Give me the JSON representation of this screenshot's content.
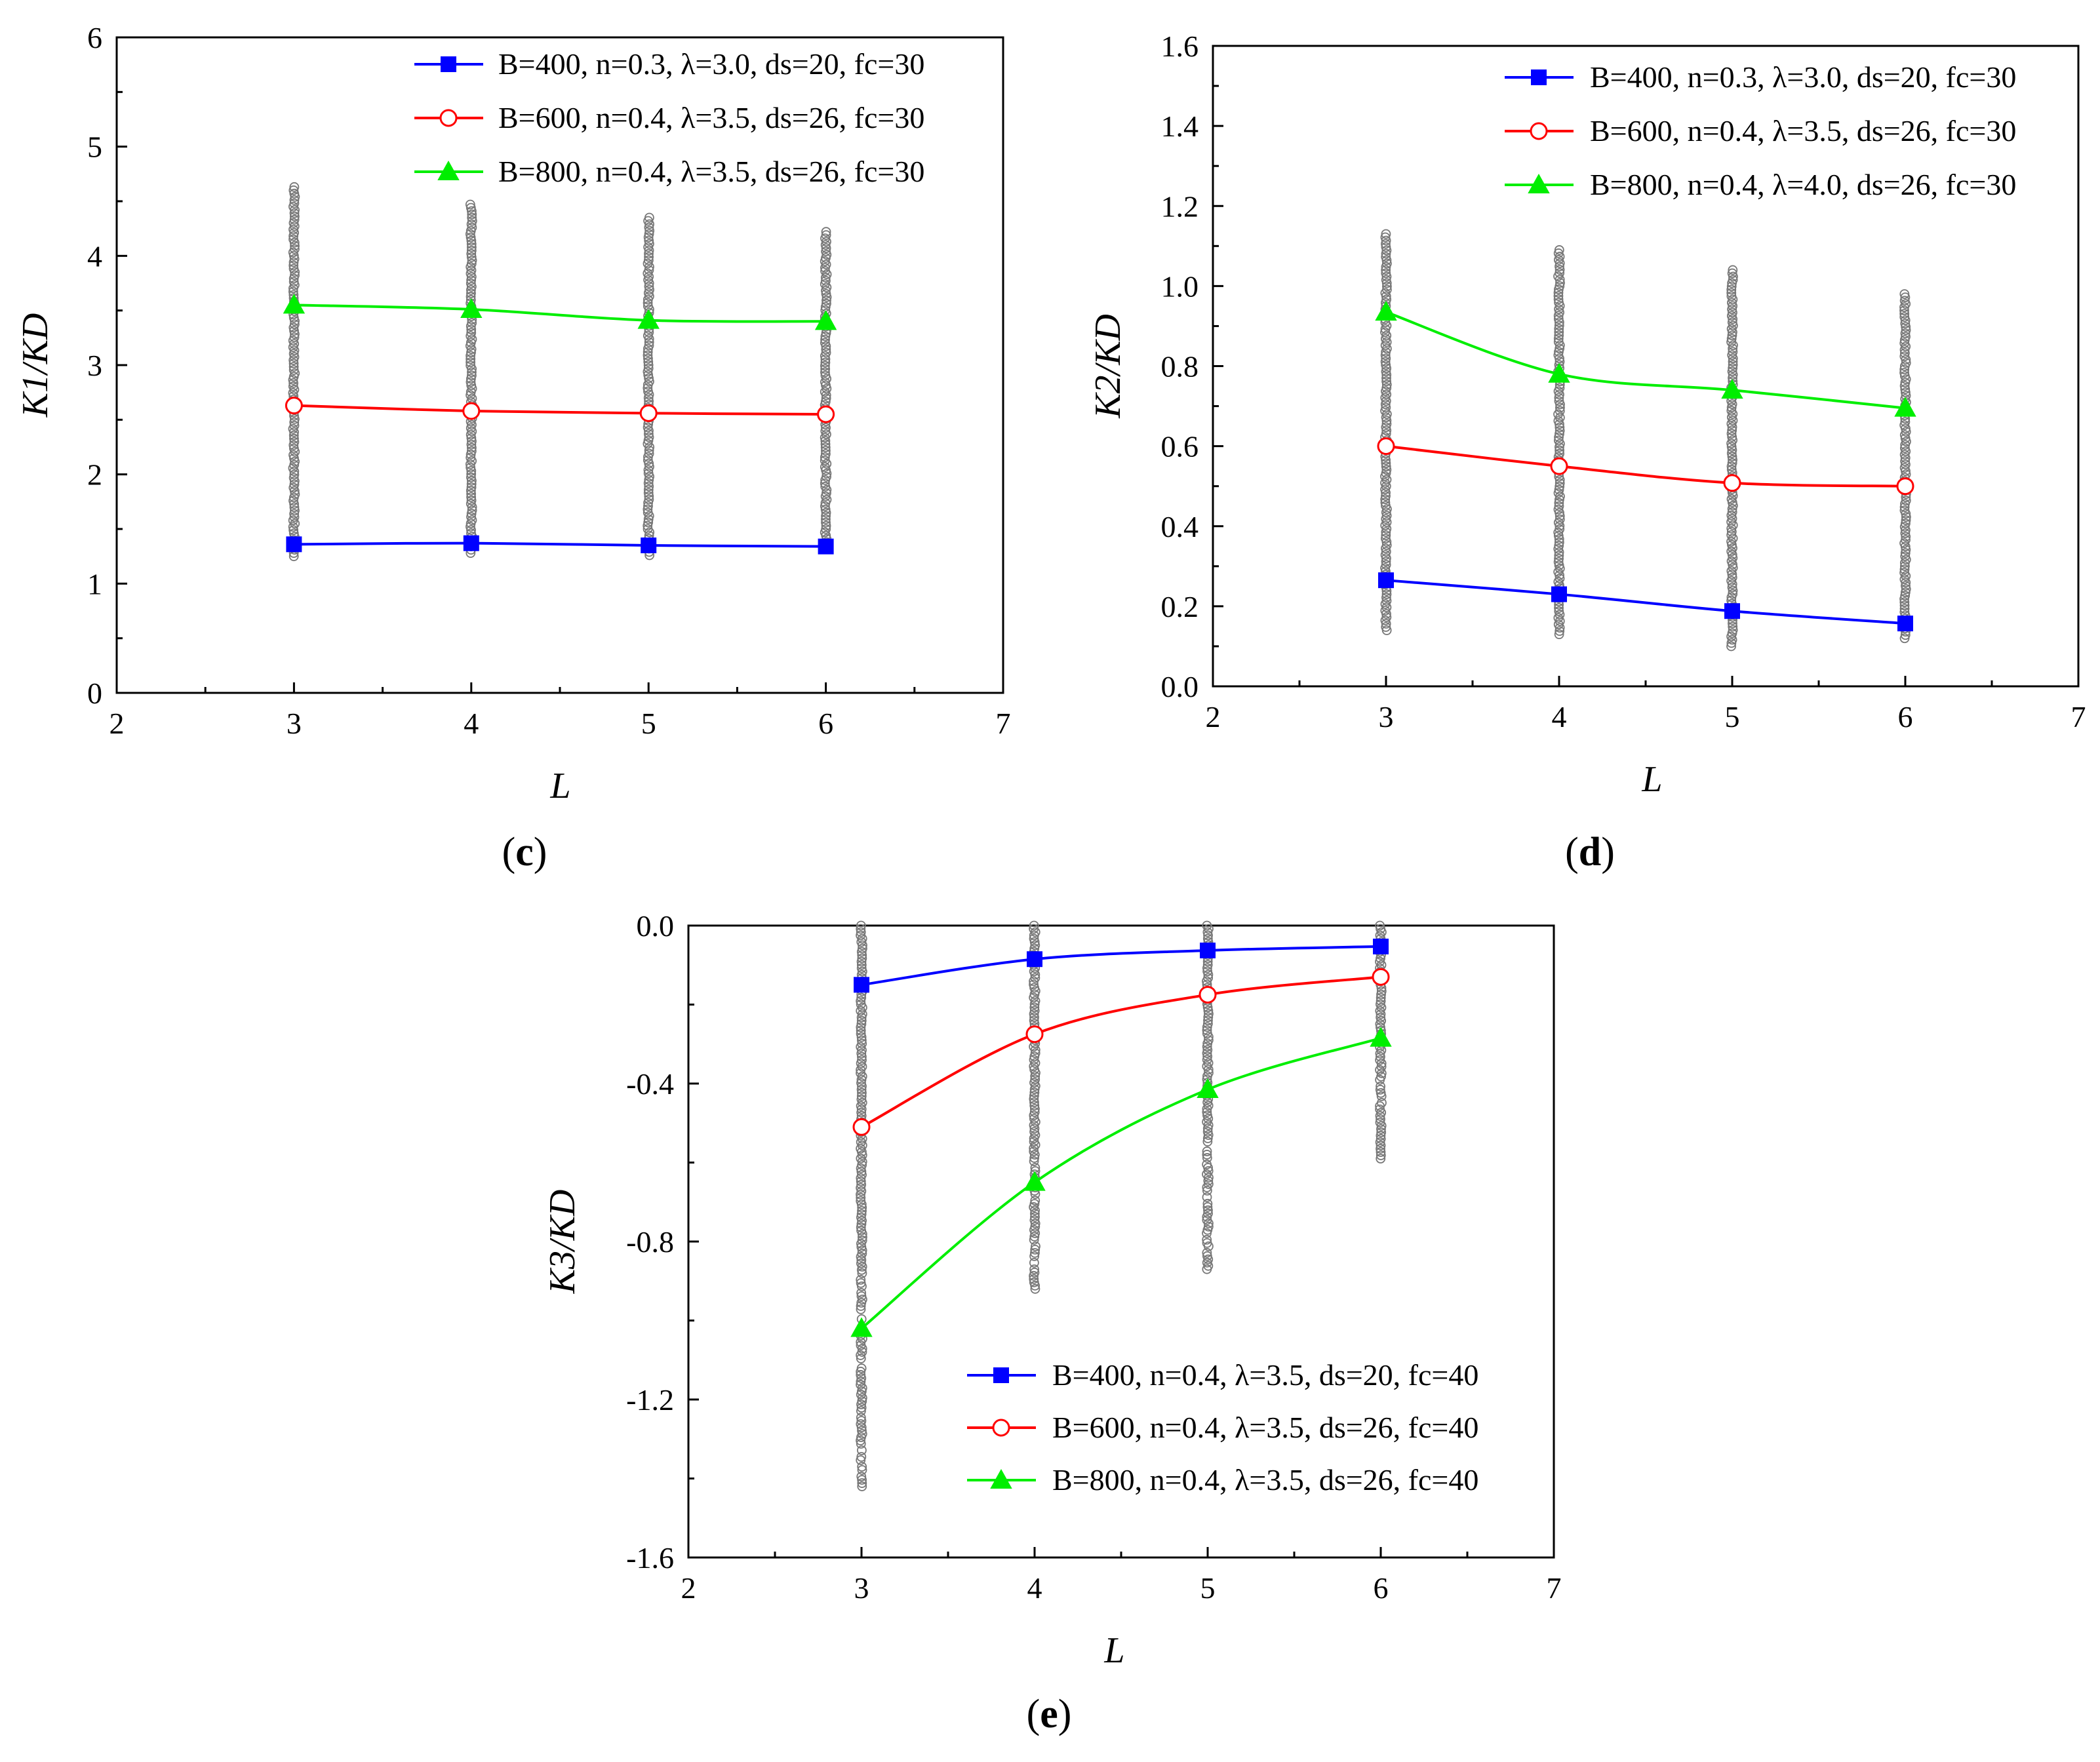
{
  "figure": {
    "panels": [
      "c",
      "d",
      "e"
    ]
  },
  "chart_data": [
    {
      "type": "line",
      "panel_label": "c",
      "xlabel": "L",
      "ylabel": "K1/KD",
      "xlim": [
        2,
        7
      ],
      "ylim": [
        0,
        6
      ],
      "x_ticks": [
        2,
        3,
        4,
        5,
        6,
        7
      ],
      "y_ticks": [
        0,
        1,
        2,
        3,
        4,
        5,
        6
      ],
      "legend_position": "top-right",
      "x": [
        3,
        4,
        5,
        6
      ],
      "series": [
        {
          "name": "B=400, n=0.3, λ=3.0, ds=20, fc=30",
          "color": "#0000ff",
          "marker": "square",
          "values": [
            1.36,
            1.37,
            1.35,
            1.34
          ]
        },
        {
          "name": "B=600, n=0.4, λ=3.5, ds=26, fc=30",
          "color": "#ff0000",
          "marker": "circle-open",
          "values": [
            2.63,
            2.58,
            2.56,
            2.55
          ]
        },
        {
          "name": "B=800, n=0.4, λ=3.5, ds=26, fc=30",
          "color": "#00ee00",
          "marker": "triangle",
          "values": [
            3.55,
            3.51,
            3.41,
            3.4
          ]
        }
      ],
      "scatter_ranges": [
        {
          "x": 3,
          "min": 1.25,
          "max": 4.63
        },
        {
          "x": 4,
          "min": 1.28,
          "max": 4.47
        },
        {
          "x": 5,
          "min": 1.26,
          "max": 4.35
        },
        {
          "x": 6,
          "min": 1.32,
          "max": 4.22
        }
      ]
    },
    {
      "type": "line",
      "panel_label": "d",
      "xlabel": "L",
      "ylabel": "K2/KD",
      "xlim": [
        2,
        7
      ],
      "ylim": [
        0,
        1.6
      ],
      "x_ticks": [
        2,
        3,
        4,
        5,
        6,
        7
      ],
      "y_ticks": [
        0.0,
        0.2,
        0.4,
        0.6,
        0.8,
        1.0,
        1.2,
        1.4,
        1.6
      ],
      "legend_position": "top-right",
      "x": [
        3,
        4,
        5,
        6
      ],
      "series": [
        {
          "name": "B=400, n=0.3, λ=3.0, ds=20, fc=30",
          "color": "#0000ff",
          "marker": "square",
          "values": [
            0.265,
            0.23,
            0.188,
            0.157
          ]
        },
        {
          "name": "B=600, n=0.4, λ=3.5, ds=26, fc=30",
          "color": "#ff0000",
          "marker": "circle-open",
          "values": [
            0.6,
            0.55,
            0.508,
            0.5
          ]
        },
        {
          "name": "B=800, n=0.4, λ=4.0, ds=26, fc=30",
          "color": "#00ee00",
          "marker": "triangle",
          "values": [
            0.935,
            0.78,
            0.74,
            0.695
          ]
        }
      ],
      "scatter_ranges": [
        {
          "x": 3,
          "min": 0.14,
          "max": 1.13
        },
        {
          "x": 4,
          "min": 0.13,
          "max": 1.09
        },
        {
          "x": 5,
          "min": 0.1,
          "max": 1.04
        },
        {
          "x": 6,
          "min": 0.12,
          "max": 0.98
        }
      ]
    },
    {
      "type": "line",
      "panel_label": "e",
      "xlabel": "L",
      "ylabel": "K3/KD",
      "xlim": [
        2,
        7
      ],
      "ylim": [
        -1.6,
        0
      ],
      "x_ticks": [
        2,
        3,
        4,
        5,
        6,
        7
      ],
      "y_ticks": [
        -1.6,
        -1.2,
        -0.8,
        -0.4,
        0.0
      ],
      "legend_position": "bottom-right",
      "x": [
        3,
        4,
        5,
        6
      ],
      "series": [
        {
          "name": "B=400, n=0.4, λ=3.5, ds=20, fc=40",
          "color": "#0000ff",
          "marker": "square",
          "values": [
            -0.15,
            -0.085,
            -0.063,
            -0.053
          ]
        },
        {
          "name": "B=600, n=0.4, λ=3.5, ds=26, fc=40",
          "color": "#ff0000",
          "marker": "circle-open",
          "values": [
            -0.51,
            -0.275,
            -0.175,
            -0.13
          ]
        },
        {
          "name": "B=800, n=0.4, λ=3.5, ds=26, fc=40",
          "color": "#00ee00",
          "marker": "triangle",
          "values": [
            -1.02,
            -0.65,
            -0.415,
            -0.285
          ]
        }
      ],
      "scatter_ranges": [
        {
          "x": 3,
          "min": -1.42,
          "max": 0.0
        },
        {
          "x": 4,
          "min": -0.92,
          "max": 0.0
        },
        {
          "x": 5,
          "min": -0.87,
          "max": 0.0
        },
        {
          "x": 6,
          "min": -0.59,
          "max": 0.0
        }
      ]
    }
  ]
}
